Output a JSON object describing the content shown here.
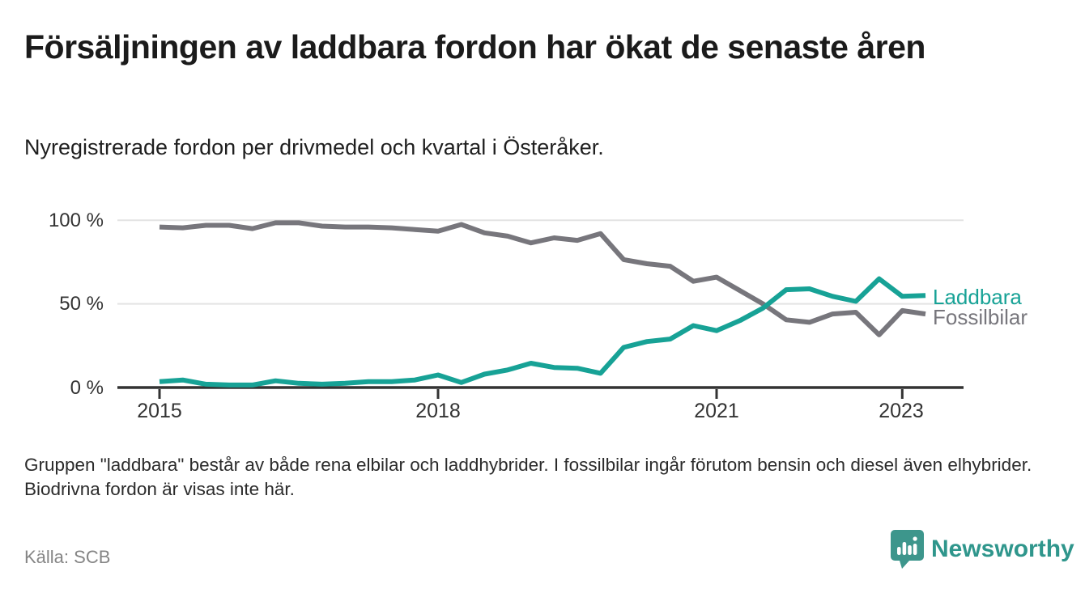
{
  "header": {
    "title": "Försäljningen av laddbara fordon har ökat de senaste åren",
    "subtitle": "Nyregistrerade fordon per drivmedel och kvartal i Österåker."
  },
  "chart_data": {
    "type": "line",
    "x_unit": "quarter",
    "x_labels": [
      "2015Q1",
      "2015Q2",
      "2015Q3",
      "2015Q4",
      "2016Q1",
      "2016Q2",
      "2016Q3",
      "2016Q4",
      "2017Q1",
      "2017Q2",
      "2017Q3",
      "2017Q4",
      "2018Q1",
      "2018Q2",
      "2018Q3",
      "2018Q4",
      "2019Q1",
      "2019Q2",
      "2019Q3",
      "2019Q4",
      "2020Q1",
      "2020Q2",
      "2020Q3",
      "2020Q4",
      "2021Q1",
      "2021Q2",
      "2021Q3",
      "2021Q4",
      "2022Q1",
      "2022Q2",
      "2022Q3",
      "2022Q4",
      "2023Q1",
      "2023Q2"
    ],
    "series": [
      {
        "name": "Laddbara",
        "color": "#17A296",
        "values": [
          3.5,
          4.5,
          2,
          1.5,
          1.5,
          4,
          2.5,
          2,
          2.5,
          3.5,
          3.5,
          4.5,
          7.5,
          3,
          8,
          10.5,
          14.5,
          12,
          11.5,
          8.5,
          24,
          27.5,
          29,
          37,
          34,
          40,
          47.5,
          58.5,
          59,
          54.5,
          51.5,
          65,
          54.5,
          55
        ]
      },
      {
        "name": "Fossilbilar",
        "color": "#77767C",
        "values": [
          96,
          95.5,
          97,
          97,
          95,
          98.5,
          98.5,
          96.5,
          96,
          96,
          95.5,
          94.5,
          93.5,
          97.5,
          92.5,
          90.5,
          86.5,
          89.5,
          88,
          92,
          76.5,
          74,
          72.5,
          63.5,
          66,
          58,
          50,
          40.5,
          39,
          44,
          45,
          31.5,
          46,
          44
        ]
      }
    ],
    "y_ticks": [
      {
        "label": "0 %",
        "value": 0
      },
      {
        "label": "50 %",
        "value": 50
      },
      {
        "label": "100 %",
        "value": 100
      }
    ],
    "x_ticks": [
      {
        "label": "2015",
        "year": 2015
      },
      {
        "label": "2018",
        "year": 2018
      },
      {
        "label": "2021",
        "year": 2021
      },
      {
        "label": "2023",
        "year": 2023
      }
    ],
    "ylim": [
      0,
      100
    ],
    "grid": "horizontal",
    "legend_position": "right-of-line-ends",
    "axis_color": "#333333",
    "gridline_color": "#E3E3E3"
  },
  "footer": {
    "note": "Gruppen \"laddbara\" består av både rena elbilar och laddhybrider. I fossilbilar ingår förutom bensin och diesel även elhybrider. Biodrivna fordon är visas inte här.",
    "source": "Källa: SCB",
    "brand": "Newsworthy",
    "brand_color": "#2F968C",
    "logo_color": "#3D968C"
  }
}
